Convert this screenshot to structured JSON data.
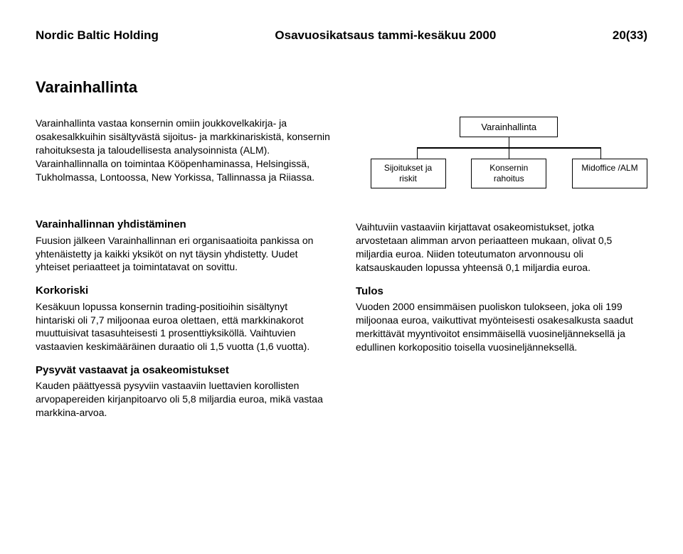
{
  "header": {
    "left": "Nordic Baltic Holding",
    "center": "Osavuosikatsaus tammi-kesäkuu 2000",
    "right": "20(33)"
  },
  "title": "Varainhallinta",
  "intro": "Varainhallinta vastaa konsernin omiin joukkovelkakirja- ja osakesalkkuihin sisältyvästä sijoitus- ja markkinariskistä, konsernin rahoituksesta ja taloudellisesta analysoinnista (ALM). Varainhallinnalla on toimintaa Kööpenhaminassa, Helsingissä, Tukholmassa, Lontoossa, New Yorkissa, Tallinnassa ja Riiassa.",
  "orgchart": {
    "top": "Varainhallinta",
    "children": [
      "Sijoitukset ja\nriskit",
      "Konsernin\nrahoitus",
      "Midoffice /ALM"
    ],
    "box_border_color": "#000000",
    "line_color": "#000000",
    "background": "#ffffff",
    "font_size_top": 13,
    "font_size_children": 12
  },
  "left_sections": [
    {
      "heading": "Varainhallinnan yhdistäminen",
      "body": "Fuusion jälkeen Varainhallinnan eri organisaatioita pankissa on yhtenäistetty ja kaikki yksiköt on nyt täysin yhdistetty. Uudet yhteiset periaatteet ja toimintatavat on sovittu."
    },
    {
      "heading": "Korkoriski",
      "body": "Kesäkuun lopussa konsernin trading-positioihin sisältynyt hintariski oli 7,7 miljoonaa euroa olettaen, että markkinakorot muuttuisivat tasasuhteisesti 1 prosenttiyksiköllä. Vaihtuvien vastaavien keskimääräinen duraatio oli 1,5 vuotta (1,6 vuotta)."
    },
    {
      "heading": "Pysyvät vastaavat ja osakeomistukset",
      "body": "Kauden päättyessä pysyviin vastaaviin luettavien korollisten arvopapereiden kirjanpitoarvo oli 5,8 miljardia euroa, mikä vastaa markkina-arvoa."
    }
  ],
  "right_sections": [
    {
      "heading": "",
      "body": "Vaihtuviin vastaaviin kirjattavat osakeomistukset, jotka arvostetaan alimman arvon periaatteen mukaan, olivat 0,5 miljardia euroa. Niiden toteutumaton arvonnousu oli katsauskauden lopussa yhteensä 0,1 miljardia euroa."
    },
    {
      "heading": "Tulos",
      "body": "Vuoden 2000 ensimmäisen puoliskon tulokseen, joka oli 199 miljoonaa euroa, vaikuttivat myönteisesti osakesalkusta  saadut merkittävät myyntivoitot ensimmäisellä vuosineljänneksellä ja edullinen korkopositio toisella vuosineljänneksellä."
    }
  ]
}
